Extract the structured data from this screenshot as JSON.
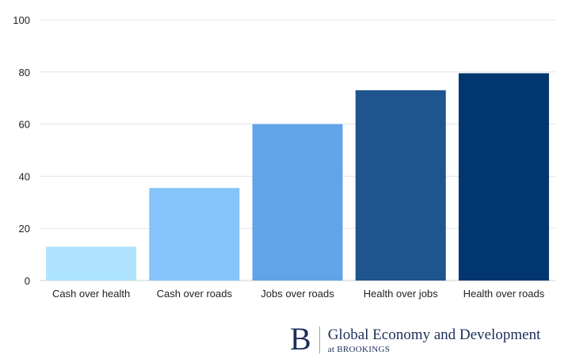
{
  "chart_data": {
    "type": "bar",
    "title": "",
    "xlabel": "",
    "ylabel": "",
    "categories": [
      "Cash over health",
      "Cash over roads",
      "Jobs over roads",
      "Health over jobs",
      "Health over roads"
    ],
    "values": [
      13,
      35.5,
      60,
      73,
      79.5
    ],
    "colors": [
      "#aee3fd",
      "#86c4fb",
      "#62a4e8",
      "#1f548e",
      "#01366e"
    ],
    "ylim": [
      0,
      100
    ],
    "yticks": [
      0,
      20,
      40,
      60,
      80,
      100
    ],
    "grid": true
  },
  "branding": {
    "mark": "B",
    "title": "Global Economy and Development",
    "subtitle": "at BROOKINGS"
  }
}
